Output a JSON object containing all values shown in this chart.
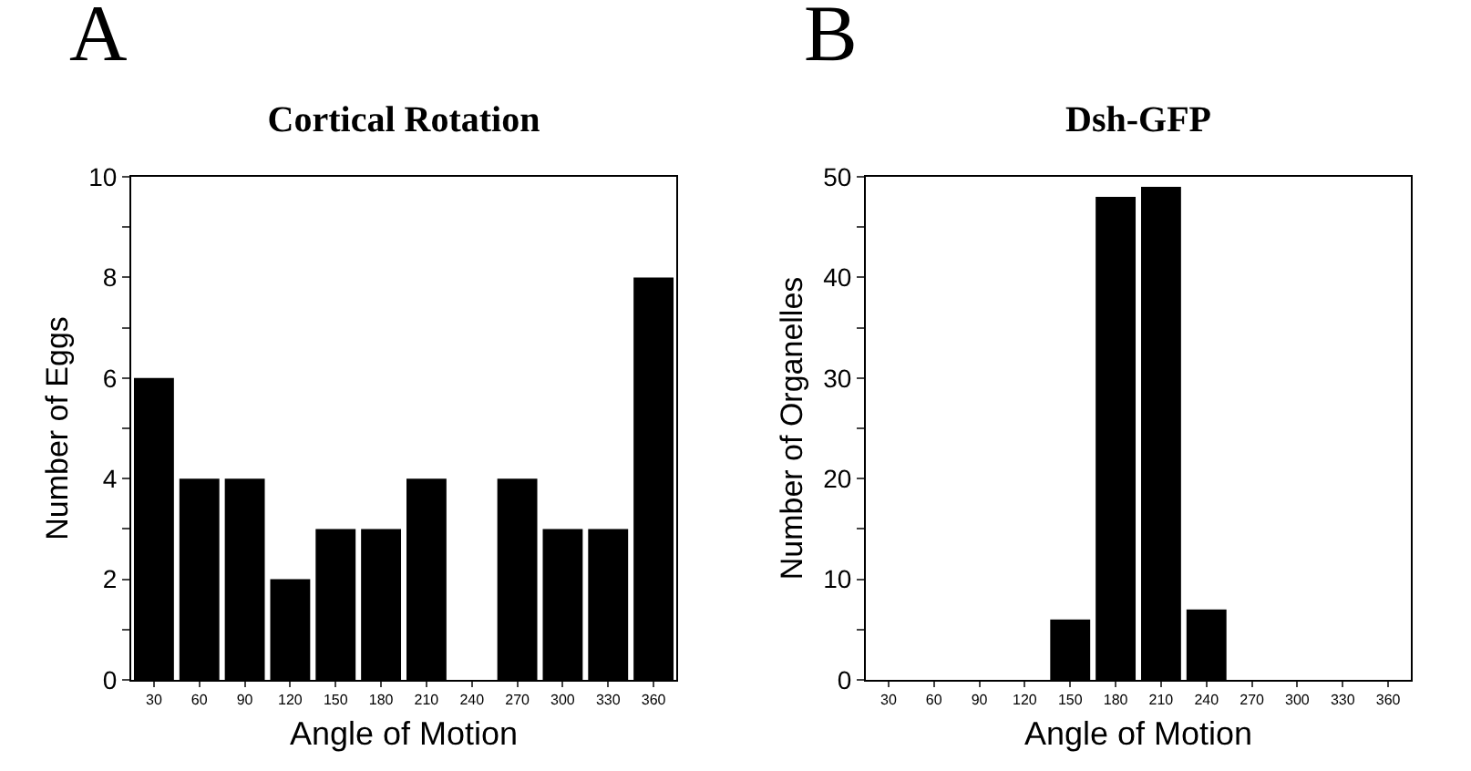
{
  "chart_data": [
    {
      "type": "bar",
      "title": "Cortical Rotation",
      "xlabel": "Angle of Motion",
      "ylabel": "Number of Eggs",
      "annotations": [
        "A"
      ],
      "categories": [
        "30",
        "60",
        "90",
        "120",
        "150",
        "180",
        "210",
        "240",
        "270",
        "300",
        "330",
        "360"
      ],
      "values": [
        6,
        4,
        4,
        2,
        3,
        3,
        4,
        0,
        4,
        3,
        3,
        8
      ],
      "color": "#000000",
      "ylim": [
        0,
        10
      ],
      "yticks": [
        0,
        {
          "value": 1,
          "label": null
        },
        2,
        {
          "value": 3,
          "label": null
        },
        4,
        {
          "value": 5,
          "label": null
        },
        6,
        {
          "value": 7,
          "label": null
        },
        8,
        {
          "value": 9,
          "label": null
        },
        10
      ],
      "grid": false
    },
    {
      "type": "bar",
      "title": "Dsh-GFP",
      "xlabel": "Angle of Motion",
      "ylabel": "Number of Organelles",
      "annotations": [
        "B"
      ],
      "categories": [
        "30",
        "60",
        "90",
        "120",
        "150",
        "180",
        "210",
        "240",
        "270",
        "300",
        "330",
        "360"
      ],
      "values": [
        0,
        0,
        0,
        0,
        6,
        48,
        49,
        7,
        0,
        0,
        0,
        0
      ],
      "color": "#000000",
      "ylim": [
        0,
        50
      ],
      "yticks": [
        0,
        {
          "value": 5,
          "label": null
        },
        10,
        {
          "value": 15,
          "label": null
        },
        20,
        {
          "value": 25,
          "label": null
        },
        30,
        {
          "value": 35,
          "label": null
        },
        40,
        {
          "value": 45,
          "label": null
        },
        50
      ],
      "grid": false
    }
  ]
}
